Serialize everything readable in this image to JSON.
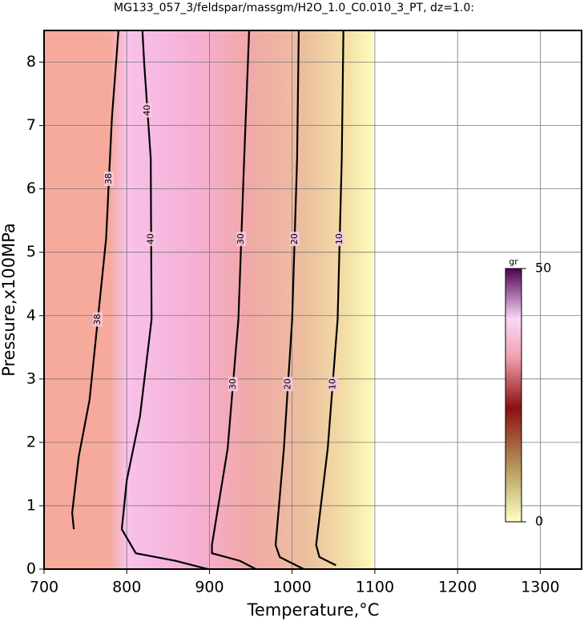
{
  "chart_data": {
    "type": "contour",
    "title": "MG133_057_3/feldspar/massgm/H2O_1.0_C0.010_3_PT, dz=1.0:",
    "x_label": "Temperature,°C",
    "y_label": "Pressure,x100MPa",
    "xlim": [
      700,
      1350
    ],
    "ylim": [
      0,
      8.5
    ],
    "xticks": [
      700,
      800,
      900,
      1000,
      1100,
      1200,
      1300
    ],
    "yticks": [
      0,
      1,
      2,
      3,
      4,
      5,
      6,
      7,
      8
    ],
    "grid": true,
    "contours": [
      {
        "level": 38,
        "x": [
          790,
          782,
          775,
          755,
          742,
          734,
          736
        ],
        "y": [
          8.5,
          7.11,
          5.21,
          2.67,
          1.78,
          0.89,
          0.63
        ]
      },
      {
        "level": 40,
        "x": [
          819,
          821,
          829,
          830,
          816,
          800,
          794,
          811,
          859,
          898
        ],
        "y": [
          8.5,
          8.0,
          6.48,
          3.94,
          2.41,
          1.4,
          0.63,
          0.25,
          0.13,
          0
        ]
      },
      {
        "level": 30,
        "x": [
          948,
          942,
          935,
          922,
          903,
          903,
          937,
          956
        ],
        "y": [
          8.5,
          6.48,
          3.94,
          1.9,
          0.38,
          0.25,
          0.13,
          0
        ]
      },
      {
        "level": 20,
        "x": [
          1008,
          1006,
          1000,
          990,
          980,
          985,
          1014
        ],
        "y": [
          8.5,
          6.48,
          3.94,
          1.9,
          0.38,
          0.19,
          0
        ]
      },
      {
        "level": 10,
        "x": [
          1062,
          1060,
          1055,
          1043,
          1029,
          1033,
          1053
        ],
        "y": [
          8.5,
          6.48,
          3.94,
          1.9,
          0.38,
          0.19,
          0.06
        ]
      }
    ],
    "colorbar": {
      "label": "gr",
      "lim": [
        0,
        50
      ],
      "ticks": [
        0,
        50
      ]
    }
  }
}
